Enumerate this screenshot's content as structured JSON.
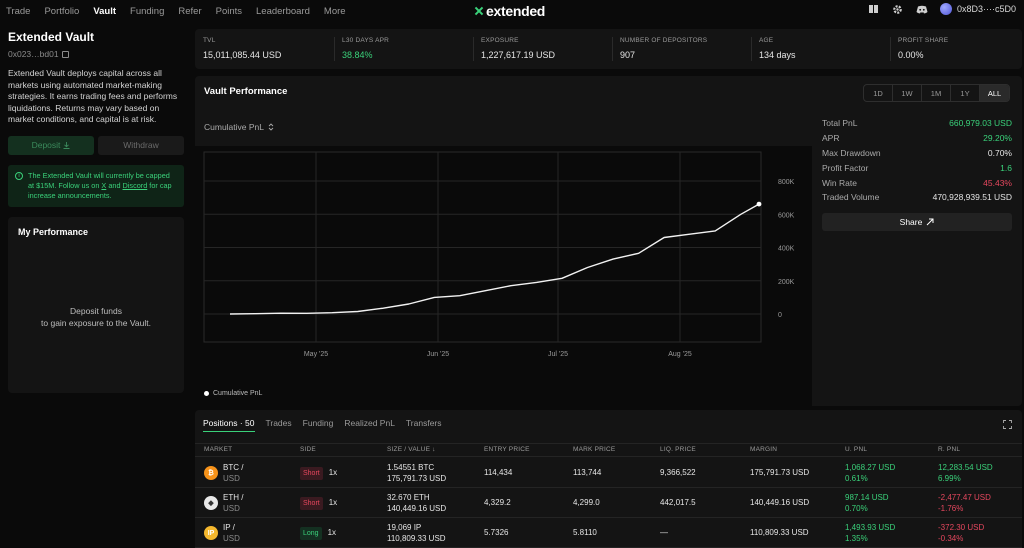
{
  "nav": {
    "links": [
      "Trade",
      "Portfolio",
      "Vault",
      "Funding",
      "Refer",
      "Points",
      "Leaderboard",
      "More"
    ],
    "active_index": 2,
    "brand": "extended",
    "wallet": "0x8D3····c5D0"
  },
  "vault": {
    "title": "Extended Vault",
    "address": "0x023…bd01",
    "description": "Extended Vault deploys capital across all markets using automated market-making strategies. It earns trading fees and performs liquidations. Returns may vary based on market conditions, and capital is at risk.",
    "deposit_label": "Deposit",
    "withdraw_label": "Withdraw",
    "notice_pre": "The Extended Vault will currently be capped at $15M. Follow us on ",
    "notice_x": "X",
    "notice_mid": " and ",
    "notice_discord": "Discord",
    "notice_post": " for cap increase announcements."
  },
  "my_performance": {
    "title": "My Performance",
    "empty_line1": "Deposit funds",
    "empty_line2": "to gain exposure to the Vault."
  },
  "stats": [
    {
      "label": "TVL",
      "value": "15,011,085.44 USD"
    },
    {
      "label": "L30 DAYS APR",
      "value": "38.84%"
    },
    {
      "label": "EXPOSURE",
      "value": "1,227,617.19 USD"
    },
    {
      "label": "NUMBER OF DEPOSITORS",
      "value": "907"
    },
    {
      "label": "AGE",
      "value": "134 days"
    },
    {
      "label": "PROFIT SHARE",
      "value": "0.00%"
    }
  ],
  "performance": {
    "title": "Vault Performance",
    "ranges": [
      "1D",
      "1W",
      "1M",
      "1Y",
      "ALL"
    ],
    "active_range": "ALL",
    "metric_selector": "Cumulative PnL",
    "legend": "Cumulative PnL",
    "metrics": [
      {
        "label": "Total PnL",
        "value": "660,979.03 USD",
        "color": "green"
      },
      {
        "label": "APR",
        "value": "29.20%",
        "color": "green"
      },
      {
        "label": "Max Drawdown",
        "value": "0.70%",
        "color": "neutral"
      },
      {
        "label": "Profit Factor",
        "value": "1.6",
        "color": "green"
      },
      {
        "label": "Win Rate",
        "value": "45.43%",
        "color": "red"
      },
      {
        "label": "Traded Volume",
        "value": "470,928,939.51 USD",
        "color": "neutral"
      }
    ],
    "share_label": "Share"
  },
  "chart_data": {
    "type": "line",
    "series": [
      {
        "name": "Cumulative PnL"
      }
    ],
    "x_ticks": [
      "May '25",
      "Jun '25",
      "Jul '25",
      "Aug '25"
    ],
    "y_ticks": [
      "800K",
      "600K",
      "400K",
      "200K",
      "0"
    ],
    "ylim": [
      0,
      800000
    ],
    "grid": true,
    "legend_position": "bottom-left",
    "x": [
      "2025-04-08",
      "2025-04-15",
      "2025-04-22",
      "2025-04-29",
      "2025-05-06",
      "2025-05-13",
      "2025-05-20",
      "2025-05-27",
      "2025-06-03",
      "2025-06-10",
      "2025-06-17",
      "2025-06-24",
      "2025-07-01",
      "2025-07-08",
      "2025-07-15",
      "2025-07-22",
      "2025-07-29",
      "2025-08-05",
      "2025-08-12",
      "2025-08-19",
      "2025-08-26",
      "2025-08-31"
    ],
    "values": [
      0,
      2000,
      5000,
      4000,
      8000,
      15000,
      35000,
      60000,
      100000,
      110000,
      140000,
      170000,
      190000,
      215000,
      280000,
      330000,
      365000,
      460000,
      480000,
      500000,
      600000,
      660979
    ]
  },
  "positions": {
    "tabs": [
      "Positions · 50",
      "Trades",
      "Funding",
      "Realized PnL",
      "Transfers"
    ],
    "headers": [
      "MARKET",
      "SIDE",
      "SIZE / VALUE ↓",
      "ENTRY PRICE",
      "MARK PRICE",
      "LIQ. PRICE",
      "MARGIN",
      "U. PNL",
      "R. PNL"
    ],
    "rows": [
      {
        "asset": "BTC /",
        "quote": "USD",
        "side": "Short",
        "lev": "1x",
        "size": "1.54551 BTC",
        "value": "175,791.73 USD",
        "entry": "114,434",
        "mark": "113,744",
        "liq": "9,366,522",
        "margin": "175,791.73 USD",
        "upnl": "1,068.27 USD",
        "upnl_pct": "0.61%",
        "upnl_color": "g",
        "rpnl": "12,283.54 USD",
        "rpnl_pct": "6.99%",
        "rpnl_color": "g",
        "coin": "₿",
        "coin_color": "#f7931a"
      },
      {
        "asset": "ETH /",
        "quote": "USD",
        "side": "Short",
        "lev": "1x",
        "size": "32.670 ETH",
        "value": "140,449.16 USD",
        "entry": "4,329.2",
        "mark": "4,299.0",
        "liq": "442,017.5",
        "margin": "140,449.16 USD",
        "upnl": "987.14 USD",
        "upnl_pct": "0.70%",
        "upnl_color": "g",
        "rpnl": "-2,477.47 USD",
        "rpnl_pct": "-1.76%",
        "rpnl_color": "r",
        "coin": "◆",
        "coin_color": "#e8e8e8"
      },
      {
        "asset": "IP /",
        "quote": "USD",
        "side": "Long",
        "lev": "1x",
        "size": "19,069 IP",
        "value": "110,809.33 USD",
        "entry": "5.7326",
        "mark": "5.8110",
        "liq": "—",
        "margin": "110,809.33 USD",
        "upnl": "1,493.93 USD",
        "upnl_pct": "1.35%",
        "upnl_color": "g",
        "rpnl": "-372.30 USD",
        "rpnl_pct": "-0.34%",
        "rpnl_color": "r",
        "coin": "IP",
        "coin_color": "#f5b82e"
      }
    ]
  }
}
